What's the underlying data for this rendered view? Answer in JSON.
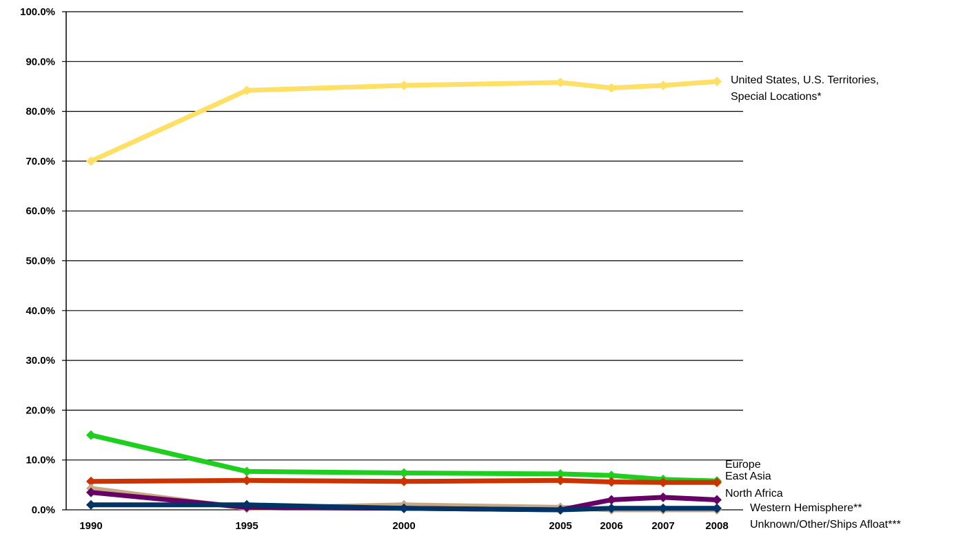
{
  "chart_data": {
    "type": "line",
    "title": "",
    "xlabel": "",
    "ylabel": "",
    "ylim": [
      0,
      100
    ],
    "y_ticks": [
      "0.0%",
      "10.0%",
      "20.0%",
      "30.0%",
      "40.0%",
      "50.0%",
      "60.0%",
      "70.0%",
      "80.0%",
      "90.0%",
      "100.0%"
    ],
    "y_tick_values": [
      0,
      10,
      20,
      30,
      40,
      50,
      60,
      70,
      80,
      90,
      100
    ],
    "x": [
      1990,
      1995,
      2000,
      2005,
      2006,
      2007,
      2008
    ],
    "x_labels": [
      "1990",
      "1995",
      "2000",
      "2005",
      "2006",
      "2007",
      "2008"
    ],
    "grid": "horizontal",
    "legend": "direct labels at right of series",
    "series": [
      {
        "label_lines": [
          "United States, U.S. Territories,",
          "Special Locations*"
        ],
        "color": "#FFE066",
        "values": [
          70.0,
          84.2,
          85.2,
          85.8,
          84.7,
          85.2,
          86.0
        ]
      },
      {
        "label_lines": [
          "Europe"
        ],
        "color": "#1FCF1F",
        "values": [
          15.0,
          7.7,
          7.4,
          7.2,
          6.9,
          6.1,
          5.8
        ]
      },
      {
        "label_lines": [
          "East Asia"
        ],
        "color": "#CC3300",
        "values": [
          5.7,
          5.9,
          5.7,
          5.9,
          5.6,
          5.5,
          5.5
        ]
      },
      {
        "label_lines": [
          "North Africa"
        ],
        "color": "#C8A882",
        "values": [
          4.3,
          0.3,
          1.0,
          0.5,
          0.0,
          0.0,
          0.0
        ]
      },
      {
        "label_lines": [
          "Western Hemisphere**"
        ],
        "color": "#660066",
        "values": [
          3.5,
          0.5,
          0.3,
          0.0,
          2.0,
          2.5,
          2.0
        ]
      },
      {
        "label_lines": [
          "Unknown/Other/Ships Afloat***"
        ],
        "color": "#003366",
        "values": [
          1.0,
          1.0,
          0.3,
          0.0,
          0.3,
          0.3,
          0.3
        ]
      }
    ]
  }
}
